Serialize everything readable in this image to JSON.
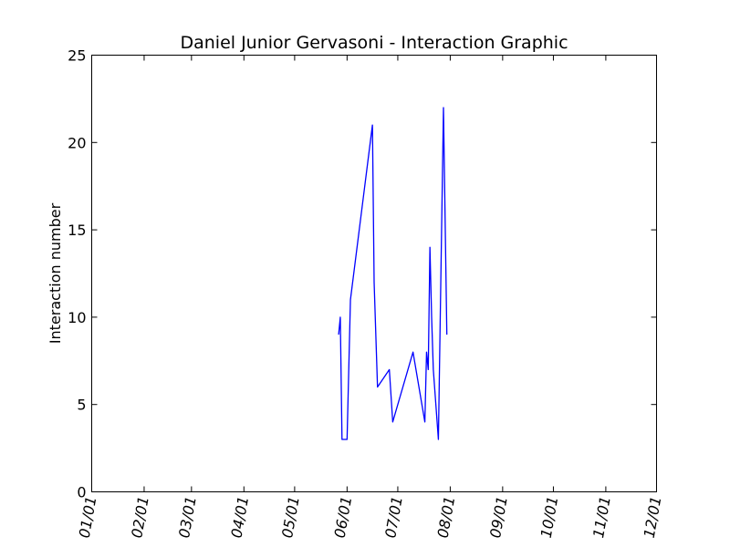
{
  "chart_data": {
    "type": "line",
    "title": "Daniel Junior Gervasoni - Interaction Graphic",
    "xlabel": "",
    "ylabel": "Interaction number",
    "xlim": [
      "01/01",
      "12/01"
    ],
    "ylim": [
      0,
      25
    ],
    "x_tick_labels": [
      "01/01",
      "02/01",
      "03/01",
      "04/01",
      "05/01",
      "06/01",
      "07/01",
      "08/01",
      "09/01",
      "10/01",
      "11/01",
      "12/01"
    ],
    "y_tick_labels": [
      "0",
      "5",
      "10",
      "15",
      "20",
      "25"
    ],
    "y_ticks": [
      0,
      5,
      10,
      15,
      20,
      25
    ],
    "grid": false,
    "series": [
      {
        "color": "#0000ff",
        "points": [
          {
            "x": "05/27",
            "y": 9
          },
          {
            "x": "05/28",
            "y": 10
          },
          {
            "x": "05/29",
            "y": 3
          },
          {
            "x": "05/31",
            "y": 3
          },
          {
            "x": "06/01",
            "y": 3
          },
          {
            "x": "06/03",
            "y": 11
          },
          {
            "x": "06/16",
            "y": 21
          },
          {
            "x": "06/17",
            "y": 12
          },
          {
            "x": "06/19",
            "y": 6
          },
          {
            "x": "06/26",
            "y": 7
          },
          {
            "x": "06/28",
            "y": 4
          },
          {
            "x": "07/10",
            "y": 8
          },
          {
            "x": "07/17",
            "y": 4
          },
          {
            "x": "07/18",
            "y": 8
          },
          {
            "x": "07/19",
            "y": 7
          },
          {
            "x": "07/20",
            "y": 14
          },
          {
            "x": "07/21",
            "y": 10
          },
          {
            "x": "07/22",
            "y": 7
          },
          {
            "x": "07/25",
            "y": 3
          },
          {
            "x": "07/28",
            "y": 22
          },
          {
            "x": "07/30",
            "y": 9
          }
        ]
      }
    ]
  }
}
